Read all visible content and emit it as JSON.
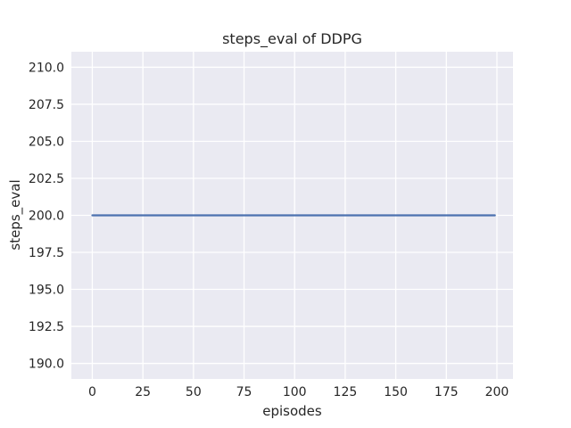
{
  "chart_data": {
    "type": "line",
    "title": "steps_eval of DDPG",
    "xlabel": "episodes",
    "ylabel": "steps_eval",
    "xlim": [
      -10.35,
      207.95
    ],
    "ylim": [
      188.95,
      211.05
    ],
    "xticks": [
      0,
      25,
      50,
      75,
      100,
      125,
      150,
      175,
      200
    ],
    "xtick_labels": [
      "0",
      "25",
      "50",
      "75",
      "100",
      "125",
      "150",
      "175",
      "200"
    ],
    "yticks": [
      190.0,
      192.5,
      195.0,
      197.5,
      200.0,
      202.5,
      205.0,
      207.5,
      210.0
    ],
    "ytick_labels": [
      "190.0",
      "192.5",
      "195.0",
      "197.5",
      "200.0",
      "202.5",
      "205.0",
      "207.5",
      "210.0"
    ],
    "grid": true,
    "legend_visible": false,
    "series": [
      {
        "name": "DDPG",
        "color": "#4c72b0",
        "x": [
          0,
          199
        ],
        "y": [
          200,
          200
        ]
      }
    ],
    "style": {
      "figure_bg": "#ffffff",
      "axes_bg": "#eaeaf2",
      "grid_color": "#ffffff",
      "text_color": "#262626"
    }
  }
}
